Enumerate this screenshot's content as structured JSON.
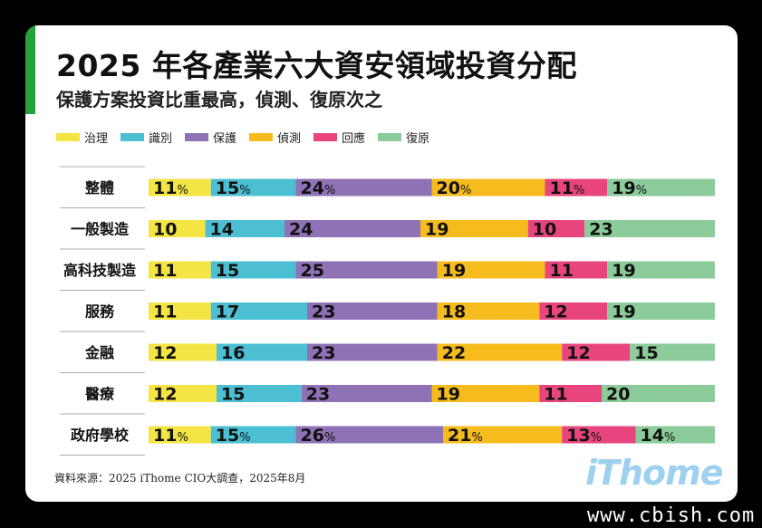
{
  "title": "2025 年各產業六大資安領域投資分配",
  "subtitle": "保護方案投資比重最高，偵測、復原次之",
  "source": "資料來源：2025 iThome CIO大調查，2025年8月",
  "logo_text": "iThome",
  "watermark": "www.cbish.com",
  "colors": {
    "治理": "#f5e544",
    "識別": "#4dbfd3",
    "保護": "#8f72b5",
    "偵測": "#f6bb1c",
    "回應": "#e8457f",
    "復原": "#8ccb9a"
  },
  "chart_data": {
    "type": "bar",
    "stacked": true,
    "orientation": "horizontal",
    "percent_sign_rows": [
      "整體",
      "政府學校"
    ],
    "categories": [
      "整體",
      "一般製造",
      "高科技製造",
      "服務",
      "金融",
      "醫療",
      "政府學校"
    ],
    "series": [
      {
        "name": "治理",
        "values": [
          11,
          10,
          11,
          11,
          12,
          12,
          11
        ]
      },
      {
        "name": "識別",
        "values": [
          15,
          14,
          15,
          17,
          16,
          15,
          15
        ]
      },
      {
        "name": "保護",
        "values": [
          24,
          24,
          25,
          23,
          23,
          23,
          26
        ]
      },
      {
        "name": "偵測",
        "values": [
          20,
          19,
          19,
          18,
          22,
          19,
          21
        ]
      },
      {
        "name": "回應",
        "values": [
          11,
          10,
          11,
          12,
          12,
          11,
          13
        ]
      },
      {
        "name": "復原",
        "values": [
          19,
          23,
          19,
          19,
          15,
          20,
          14
        ]
      }
    ]
  }
}
